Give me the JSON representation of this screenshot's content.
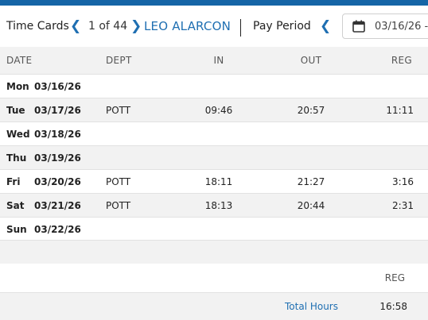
{
  "header": {
    "title": "Time Cards",
    "record_position": "1 of 44",
    "employee_name": "LEO ALARCON",
    "pay_period_label": "Pay Period",
    "date_value": "03/16/26 -",
    "icons": {
      "prev": "chevron-left-icon",
      "next": "chevron-right-icon",
      "period_prev": "chevron-left-icon",
      "calendar": "calendar-icon"
    },
    "accent_color": "#1565a6"
  },
  "columns": {
    "date": "DATE",
    "dept": "DEPT",
    "in": "IN",
    "out": "OUT",
    "reg": "REG"
  },
  "rows": [
    {
      "day": "Mon",
      "date": "03/16/26",
      "dept": "",
      "in": "",
      "out": "",
      "reg": ""
    },
    {
      "day": "Tue",
      "date": "03/17/26",
      "dept": "POTT",
      "in": "09:46",
      "out": "20:57",
      "reg": "11:11"
    },
    {
      "day": "Wed",
      "date": "03/18/26",
      "dept": "",
      "in": "",
      "out": "",
      "reg": ""
    },
    {
      "day": "Thu",
      "date": "03/19/26",
      "dept": "",
      "in": "",
      "out": "",
      "reg": ""
    },
    {
      "day": "Fri",
      "date": "03/20/26",
      "dept": "POTT",
      "in": "18:11",
      "out": "21:27",
      "reg": "3:16"
    },
    {
      "day": "Sat",
      "date": "03/21/26",
      "dept": "POTT",
      "in": "18:13",
      "out": "20:44",
      "reg": "2:31"
    },
    {
      "day": "Sun",
      "date": "03/22/26",
      "dept": "",
      "in": "",
      "out": "",
      "reg": ""
    }
  ],
  "summary": {
    "reg_header": "REG",
    "total_label": "Total Hours",
    "total_reg": "16:58"
  }
}
